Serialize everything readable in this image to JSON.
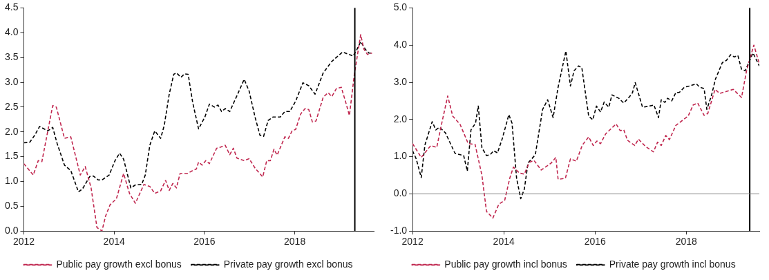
{
  "chart_data": [
    {
      "type": "line",
      "legend": "bottom",
      "line_style": "dashed",
      "marker": "none",
      "grid": false,
      "xlim": [
        2012,
        2019.75
      ],
      "xticks": [
        2012,
        2014,
        2016,
        2018
      ],
      "ylim": [
        0,
        4.5
      ],
      "yticks": [
        {
          "value": 0,
          "label": "0.0"
        },
        {
          "value": 0.5,
          "label": "0.5"
        },
        {
          "value": 1,
          "label": "1.0"
        },
        {
          "value": 1.5,
          "label": "1.5"
        },
        {
          "value": 2,
          "label": "2.0"
        },
        {
          "value": 2.5,
          "label": "2.5"
        },
        {
          "value": 3,
          "label": "3.0"
        },
        {
          "value": 3.5,
          "label": "3.5"
        },
        {
          "value": 4,
          "label": "4.0"
        },
        {
          "value": 4.5,
          "label": "4.5"
        }
      ],
      "ref_lines": [
        {
          "axis": "x",
          "value": 2019.33,
          "color": "#000000"
        }
      ],
      "series": [
        {
          "name": "Public pay growth excl bonus",
          "color": "#c0274f",
          "x": [
            2012.0,
            2012.21,
            2012.32,
            2012.4,
            2012.64,
            2012.72,
            2012.9,
            2013.04,
            2013.25,
            2013.36,
            2013.49,
            2013.62,
            2013.73,
            2013.81,
            2013.91,
            2014.05,
            2014.21,
            2014.34,
            2014.47,
            2014.66,
            2014.79,
            2014.9,
            2015.03,
            2015.14,
            2015.22,
            2015.3,
            2015.38,
            2015.46,
            2015.62,
            2015.74,
            2015.82,
            2015.87,
            2015.95,
            2016.03,
            2016.11,
            2016.27,
            2016.35,
            2016.46,
            2016.56,
            2016.64,
            2016.72,
            2016.88,
            2016.99,
            2017.12,
            2017.29,
            2017.38,
            2017.46,
            2017.54,
            2017.61,
            2017.78,
            2017.86,
            2017.94,
            2018.02,
            2018.13,
            2018.23,
            2018.31,
            2018.39,
            2018.47,
            2018.63,
            2018.74,
            2018.82,
            2018.92,
            2019.03,
            2019.14,
            2019.21,
            2019.32,
            2019.46,
            2019.53,
            2019.61,
            2019.71
          ],
          "values": [
            1.36,
            1.13,
            1.42,
            1.4,
            2.53,
            2.5,
            1.87,
            1.9,
            1.13,
            1.3,
            0.87,
            0.07,
            0.0,
            0.3,
            0.53,
            0.65,
            1.16,
            0.76,
            0.56,
            0.94,
            0.9,
            0.76,
            0.81,
            1.02,
            0.82,
            0.96,
            0.87,
            1.16,
            1.16,
            1.22,
            1.25,
            1.39,
            1.33,
            1.42,
            1.36,
            1.67,
            1.69,
            1.73,
            1.54,
            1.67,
            1.47,
            1.42,
            1.46,
            1.27,
            1.09,
            1.42,
            1.42,
            1.65,
            1.53,
            1.9,
            1.87,
            2.02,
            2.05,
            2.36,
            2.47,
            2.45,
            2.2,
            2.22,
            2.7,
            2.79,
            2.71,
            2.87,
            2.9,
            2.56,
            2.33,
            3.16,
            3.96,
            3.67,
            3.56,
            3.59
          ]
        },
        {
          "name": "Private pay growth excl bonus",
          "color": "#000000",
          "x": [
            2012.0,
            2012.13,
            2012.24,
            2012.35,
            2012.45,
            2012.53,
            2012.64,
            2012.74,
            2012.9,
            2013.04,
            2013.21,
            2013.3,
            2013.46,
            2013.54,
            2013.65,
            2013.73,
            2013.89,
            2014.02,
            2014.12,
            2014.21,
            2014.37,
            2014.47,
            2014.61,
            2014.69,
            2014.79,
            2014.9,
            2015.03,
            2015.11,
            2015.22,
            2015.32,
            2015.38,
            2015.48,
            2015.56,
            2015.64,
            2015.74,
            2015.87,
            2016.01,
            2016.11,
            2016.22,
            2016.3,
            2016.38,
            2016.46,
            2016.56,
            2016.72,
            2016.88,
            2016.99,
            2017.12,
            2017.23,
            2017.31,
            2017.41,
            2017.52,
            2017.68,
            2017.78,
            2017.89,
            2018.02,
            2018.18,
            2018.31,
            2018.45,
            2018.63,
            2018.82,
            2018.92,
            2019.06,
            2019.29,
            2019.37,
            2019.46,
            2019.56,
            2019.64,
            2019.71
          ],
          "values": [
            1.78,
            1.79,
            1.93,
            2.11,
            2.06,
            2.02,
            2.09,
            1.76,
            1.33,
            1.22,
            0.79,
            0.85,
            1.1,
            1.11,
            1.03,
            1.03,
            1.13,
            1.42,
            1.57,
            1.45,
            0.87,
            0.93,
            0.94,
            1.13,
            1.73,
            2.02,
            1.87,
            2.13,
            2.76,
            3.16,
            3.19,
            3.1,
            3.17,
            3.16,
            2.59,
            2.06,
            2.3,
            2.56,
            2.5,
            2.54,
            2.41,
            2.47,
            2.41,
            2.73,
            3.06,
            2.82,
            2.3,
            1.93,
            1.91,
            2.23,
            2.3,
            2.3,
            2.41,
            2.41,
            2.62,
            2.99,
            2.93,
            2.76,
            3.19,
            3.42,
            3.5,
            3.61,
            3.53,
            3.65,
            3.82,
            3.67,
            3.59,
            3.59
          ]
        }
      ]
    },
    {
      "type": "line",
      "legend": "bottom",
      "line_style": "dashed",
      "marker": "none",
      "grid": false,
      "xlim": [
        2012,
        2019.6
      ],
      "xticks": [
        2012,
        2014,
        2016,
        2018
      ],
      "ylim": [
        -1,
        5
      ],
      "yticks": [
        {
          "value": -1,
          "label": "-1.0"
        },
        {
          "value": 0,
          "label": "0.0"
        },
        {
          "value": 1,
          "label": "1.0"
        },
        {
          "value": 2,
          "label": "2.0"
        },
        {
          "value": 3,
          "label": "3.0"
        },
        {
          "value": 4,
          "label": "4.0"
        },
        {
          "value": 5,
          "label": "5.0"
        }
      ],
      "ref_lines": [
        {
          "axis": "x",
          "value": 2019.39,
          "color": "#000000"
        },
        {
          "axis": "y",
          "value": 0,
          "color": "#808080"
        }
      ],
      "series": [
        {
          "name": "Public pay growth incl bonus",
          "color": "#c0274f",
          "x": [
            2012.0,
            2012.19,
            2012.4,
            2012.53,
            2012.64,
            2012.77,
            2012.88,
            2013.04,
            2013.22,
            2013.37,
            2013.52,
            2013.62,
            2013.76,
            2013.89,
            2014.02,
            2014.13,
            2014.21,
            2014.34,
            2014.45,
            2014.56,
            2014.66,
            2014.82,
            2015.04,
            2015.14,
            2015.19,
            2015.35,
            2015.46,
            2015.59,
            2015.72,
            2015.86,
            2015.96,
            2016.04,
            2016.12,
            2016.23,
            2016.46,
            2016.55,
            2016.63,
            2016.71,
            2016.87,
            2016.95,
            2017.11,
            2017.28,
            2017.37,
            2017.45,
            2017.55,
            2017.63,
            2017.77,
            2017.93,
            2018.04,
            2018.15,
            2018.25,
            2018.39,
            2018.47,
            2018.63,
            2018.73,
            2019.03,
            2019.21,
            2019.32,
            2019.48,
            2019.6
          ],
          "values": [
            1.35,
            0.98,
            1.3,
            1.25,
            1.9,
            2.63,
            2.09,
            1.87,
            1.35,
            1.33,
            0.5,
            -0.47,
            -0.65,
            -0.28,
            -0.17,
            0.42,
            0.72,
            0.56,
            0.53,
            0.85,
            0.9,
            0.64,
            0.83,
            0.98,
            0.39,
            0.42,
            0.94,
            0.88,
            1.31,
            1.53,
            1.3,
            1.42,
            1.35,
            1.61,
            1.88,
            1.7,
            1.72,
            1.44,
            1.3,
            1.47,
            1.27,
            1.13,
            1.39,
            1.3,
            1.57,
            1.46,
            1.84,
            1.99,
            2.09,
            2.39,
            2.44,
            2.11,
            2.16,
            2.81,
            2.7,
            2.81,
            2.59,
            3.31,
            4.0,
            3.5
          ]
        },
        {
          "name": "Private pay growth incl bonus",
          "color": "#000000",
          "x": [
            2012.0,
            2012.08,
            2012.19,
            2012.27,
            2012.43,
            2012.51,
            2012.59,
            2012.72,
            2012.93,
            2013.12,
            2013.2,
            2013.28,
            2013.38,
            2013.44,
            2013.52,
            2013.62,
            2013.7,
            2013.78,
            2013.86,
            2013.97,
            2014.11,
            2014.18,
            2014.28,
            2014.37,
            2014.45,
            2014.53,
            2014.69,
            2014.85,
            2014.96,
            2015.08,
            2015.19,
            2015.36,
            2015.46,
            2015.54,
            2015.64,
            2015.71,
            2015.86,
            2015.95,
            2016.03,
            2016.12,
            2016.2,
            2016.3,
            2016.37,
            2016.52,
            2016.63,
            2016.76,
            2016.82,
            2016.88,
            2017.04,
            2017.19,
            2017.29,
            2017.39,
            2017.45,
            2017.53,
            2017.59,
            2017.68,
            2017.77,
            2017.85,
            2017.96,
            2018.07,
            2018.22,
            2018.29,
            2018.39,
            2018.45,
            2018.55,
            2018.64,
            2018.79,
            2018.88,
            2018.97,
            2019.05,
            2019.13,
            2019.21,
            2019.29,
            2019.37,
            2019.46,
            2019.6
          ],
          "values": [
            1.16,
            0.94,
            0.44,
            1.31,
            1.94,
            1.72,
            1.79,
            1.64,
            1.09,
            1.03,
            0.61,
            1.72,
            1.9,
            2.36,
            1.24,
            1.03,
            1.05,
            1.16,
            1.1,
            1.5,
            2.13,
            1.9,
            0.42,
            -0.13,
            0.13,
            0.83,
            1.05,
            2.27,
            2.53,
            2.05,
            2.87,
            3.84,
            2.9,
            3.31,
            3.44,
            3.39,
            2.09,
            1.99,
            2.36,
            2.2,
            2.47,
            2.33,
            2.66,
            2.57,
            2.44,
            2.62,
            2.72,
            2.99,
            2.33,
            2.36,
            2.39,
            2.05,
            2.53,
            2.46,
            2.57,
            2.5,
            2.72,
            2.73,
            2.87,
            2.9,
            2.96,
            2.87,
            2.83,
            2.27,
            2.64,
            3.09,
            3.53,
            3.59,
            3.74,
            3.68,
            3.72,
            3.35,
            3.31,
            3.53,
            3.79,
            3.44
          ]
        }
      ]
    }
  ]
}
